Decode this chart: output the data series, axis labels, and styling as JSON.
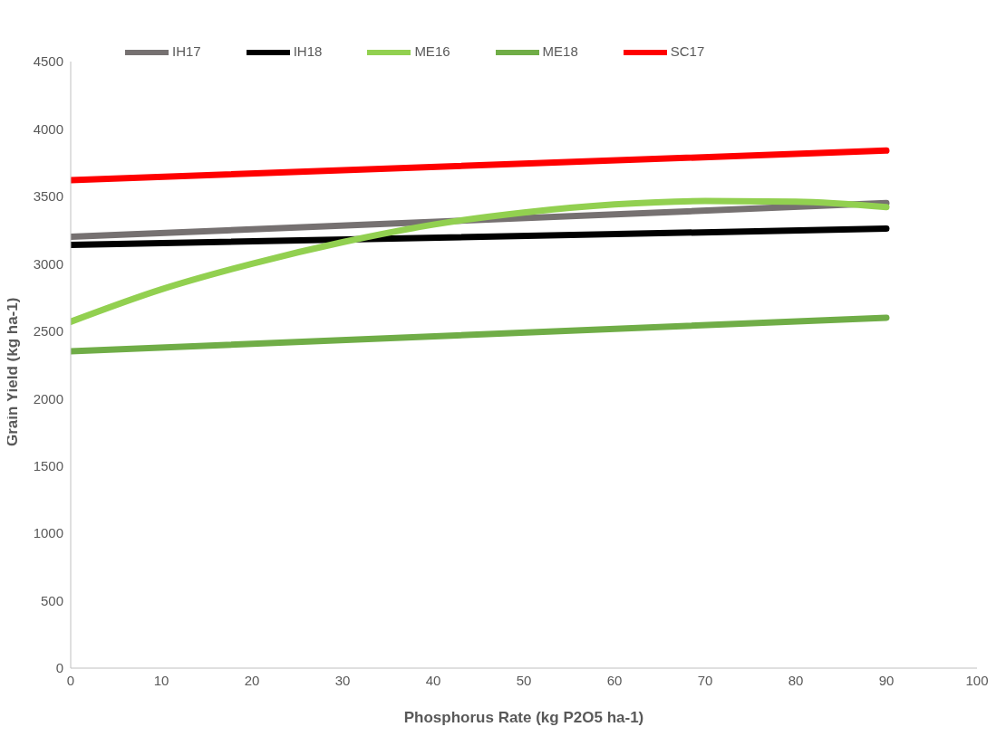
{
  "chart_data": {
    "type": "line",
    "xlabel": "Phosphorus Rate (kg P2O5 ha-1)",
    "ylabel": "Grain Yield (kg ha-1)",
    "xlim": [
      0,
      100
    ],
    "xticks": [
      0,
      10,
      20,
      30,
      40,
      50,
      60,
      70,
      80,
      90,
      100
    ],
    "ylim": [
      0,
      4500
    ],
    "yticks": [
      0,
      500,
      1000,
      1500,
      2000,
      2500,
      3000,
      3500,
      4000,
      4500
    ],
    "grid": false,
    "legend": "top left",
    "marker": "none",
    "line_style": "solid",
    "series": [
      {
        "name": "IH17",
        "color": "#767171",
        "x": [
          0,
          90
        ],
        "values": [
          3200,
          3450
        ]
      },
      {
        "name": "IH18",
        "color": "#000000",
        "x": [
          0,
          90
        ],
        "values": [
          3140,
          3260
        ]
      },
      {
        "name": "ME16",
        "color": "#92d050",
        "x": [
          0,
          10,
          20,
          30,
          40,
          50,
          60,
          70,
          80,
          90
        ],
        "values": [
          2570,
          2810,
          3000,
          3160,
          3290,
          3380,
          3440,
          3465,
          3460,
          3420
        ]
      },
      {
        "name": "ME18",
        "color": "#70ad47",
        "x": [
          0,
          90
        ],
        "values": [
          2350,
          2600
        ]
      },
      {
        "name": "SC17",
        "color": "#ff0000",
        "x": [
          0,
          90
        ],
        "values": [
          3620,
          3840
        ]
      }
    ]
  }
}
